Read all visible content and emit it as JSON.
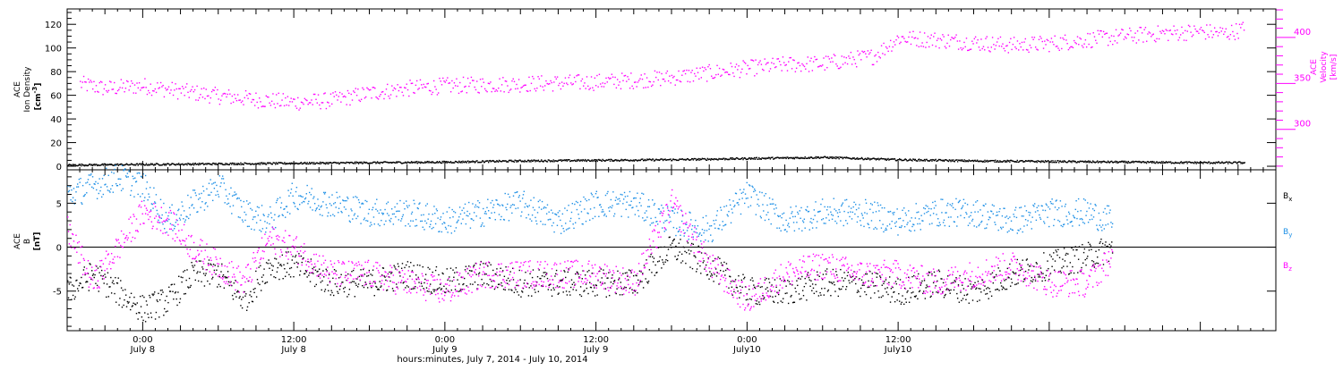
{
  "chart_data": [
    {
      "type": "scatter",
      "panel": "top",
      "ylabel": {
        "line1": "ACE",
        "line2": "Ion Density",
        "line3": "[cm",
        "sup": "-3",
        "close": "]"
      },
      "y2label": {
        "line1": "ACE",
        "line2": "Velocity",
        "line3": "[km/s]"
      },
      "ylim": [
        -3,
        133
      ],
      "y2lim": [
        256,
        431
      ],
      "yticks": [
        0,
        20,
        40,
        60,
        80,
        100,
        120
      ],
      "y2ticks": [
        300,
        350,
        400
      ],
      "x_range_hours": [
        -6,
        90
      ],
      "series": [
        {
          "name": "",
          "axis": "y2",
          "color": "#ff00ff",
          "x": [
            -5,
            -3,
            0,
            3,
            6,
            9,
            12,
            15,
            18,
            21,
            24,
            27,
            30,
            33,
            36,
            39,
            42,
            45,
            48,
            51,
            54,
            58,
            60,
            63,
            66,
            69,
            72,
            75,
            78,
            81,
            84,
            86,
            87.5
          ],
          "y": [
            350,
            345,
            348,
            342,
            337,
            333,
            330,
            332,
            340,
            345,
            348,
            349,
            350,
            351,
            352,
            354,
            357,
            362,
            367,
            371,
            372,
            380,
            400,
            398,
            395,
            392,
            394,
            398,
            402,
            405,
            407,
            405,
            410
          ]
        },
        {
          "name": "",
          "axis": "y",
          "color": "#000000",
          "x": [
            -6,
            0,
            6,
            12,
            18,
            24,
            30,
            36,
            42,
            48,
            54,
            60,
            66,
            72,
            78,
            84,
            87.5
          ],
          "y": [
            1.5,
            2.0,
            2.5,
            3.0,
            3.5,
            4.0,
            5.0,
            5.5,
            6.0,
            7.0,
            8.0,
            6.0,
            5.0,
            4.5,
            4.0,
            3.5,
            3.5
          ]
        }
      ]
    },
    {
      "type": "scatter",
      "panel": "bottom",
      "ylabel": {
        "line1": "ACE",
        "line2": "B",
        "line3": "[nT]"
      },
      "ylim": [
        -9.5,
        8.8
      ],
      "yticks": [
        -5,
        0,
        5
      ],
      "zero_line": true,
      "xlabel": "hours:minutes, July  7, 2014 - July 10, 2014",
      "x_ticks": [
        {
          "hour": 0,
          "time": "0:00",
          "date": "July 8"
        },
        {
          "hour": 12,
          "time": "12:00",
          "date": "July 8"
        },
        {
          "hour": 24,
          "time": "0:00",
          "date": "July 9"
        },
        {
          "hour": 36,
          "time": "12:00",
          "date": "July 9"
        },
        {
          "hour": 48,
          "time": "0:00",
          "date": "July10"
        },
        {
          "hour": 60,
          "time": "12:00",
          "date": "July10"
        }
      ],
      "series": [
        {
          "name": "B",
          "sub": "x",
          "color": "#000000",
          "x": [
            -6,
            -4,
            -2,
            0,
            2,
            4,
            6,
            8,
            10,
            12,
            15,
            18,
            21,
            24,
            27,
            30,
            33,
            36,
            39,
            42,
            45,
            48,
            51,
            54,
            57,
            60,
            63,
            66,
            69,
            72,
            75,
            77
          ],
          "y": [
            -5,
            -3,
            -5,
            -7,
            -6,
            -3,
            -3,
            -6,
            -2,
            -2,
            -4,
            -4,
            -3,
            -4,
            -3,
            -4,
            -4,
            -4,
            -4,
            0,
            -2,
            -5,
            -5,
            -4,
            -4,
            -5,
            -4,
            -5,
            -3,
            -2,
            -1,
            0
          ]
        },
        {
          "name": "B",
          "sub": "y",
          "color": "#1e90e6",
          "x": [
            -6,
            -4,
            -2,
            0,
            2,
            4,
            6,
            8,
            10,
            12,
            15,
            18,
            21,
            24,
            27,
            30,
            33,
            36,
            39,
            42,
            45,
            48,
            51,
            54,
            57,
            60,
            63,
            66,
            69,
            72,
            75,
            77
          ],
          "y": [
            6,
            7,
            8,
            7,
            3,
            5,
            7,
            4,
            3,
            6,
            5,
            4,
            4,
            3,
            4,
            5,
            3,
            5,
            5,
            3,
            2,
            6,
            3,
            4,
            4,
            3,
            4,
            4,
            3,
            4,
            4,
            3
          ]
        },
        {
          "name": "B",
          "sub": "z",
          "color": "#ff00ff",
          "x": [
            -6,
            -4,
            -2,
            0,
            2,
            4,
            6,
            8,
            10,
            12,
            15,
            18,
            21,
            24,
            27,
            30,
            33,
            36,
            39,
            42,
            45,
            48,
            51,
            54,
            57,
            60,
            63,
            66,
            69,
            72,
            75,
            77
          ],
          "y": [
            2,
            -4,
            0,
            4,
            3,
            0,
            -2,
            -4,
            1,
            0,
            -3,
            -3,
            -4,
            -5,
            -3,
            -3,
            -3,
            -3,
            -4,
            5,
            -2,
            -6,
            -3,
            -2,
            -3,
            -3,
            -4,
            -3,
            -2,
            -4,
            -4,
            -1
          ]
        }
      ]
    }
  ]
}
